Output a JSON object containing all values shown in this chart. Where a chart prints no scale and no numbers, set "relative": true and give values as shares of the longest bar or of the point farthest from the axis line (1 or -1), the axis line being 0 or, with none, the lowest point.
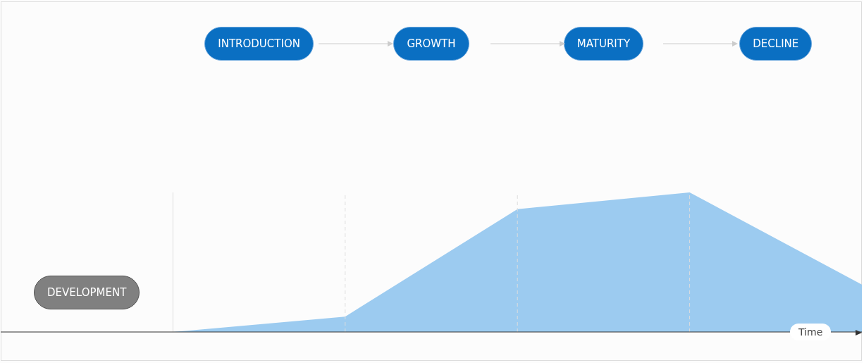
{
  "chart_data": {
    "type": "area",
    "relative": true,
    "xlabel": "Time",
    "categories": [
      null,
      null,
      null,
      null,
      null,
      null
    ],
    "series": [
      {
        "color": "#9ccbf0",
        "values": [
          null,
          0,
          0.11,
          0.88,
          1,
          0.34
        ]
      }
    ],
    "annotations": [
      "DEVELOPMENT",
      "INTRODUCTION",
      "GROWTH",
      "MATURITY",
      "DECLINE"
    ],
    "grid": "x"
  }
}
